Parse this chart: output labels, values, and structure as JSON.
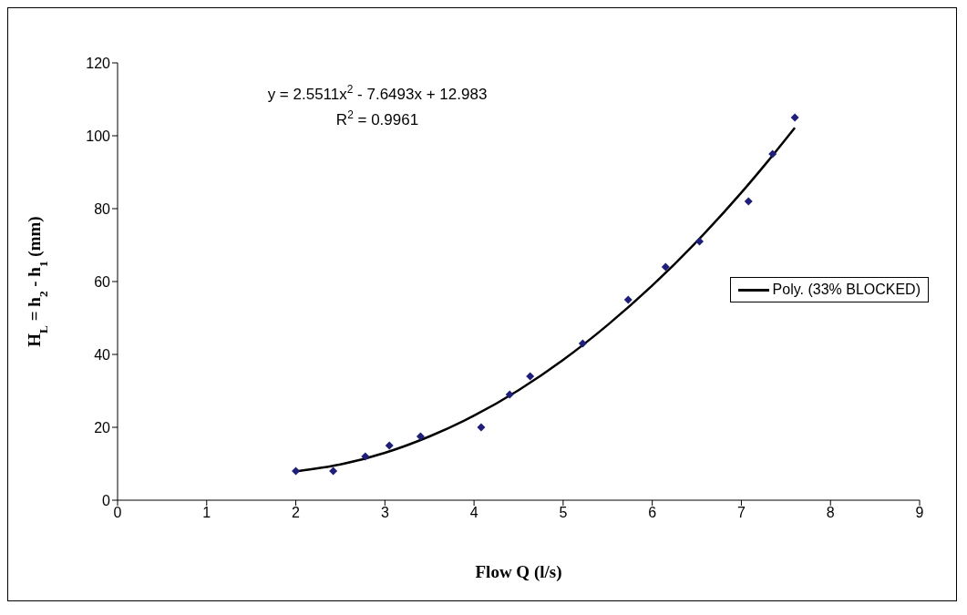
{
  "chart_data": {
    "type": "scatter",
    "xlabel": "Flow Q (l/s)",
    "ylabel": "H$_{L}$ = h$_{2}$ - h$_{1}$ (mm)",
    "x": [
      2.0,
      2.42,
      2.78,
      3.05,
      3.4,
      4.08,
      4.4,
      4.63,
      5.22,
      5.73,
      6.15,
      6.53,
      7.08,
      7.35,
      7.6
    ],
    "series": [
      {
        "color": "#1f1f7a",
        "marker": "diamond",
        "values": [
          8,
          8,
          12,
          15,
          17.5,
          20,
          29,
          34,
          43,
          55,
          64,
          71,
          82,
          95,
          105
        ]
      },
      {
        "type": "line",
        "name": "Poly. (33% BLOCKED)",
        "color": "#000000",
        "x": [
          2,
          2.5,
          3,
          3.5,
          4,
          4.5,
          5,
          5.5,
          6,
          6.5,
          7,
          7.3,
          7.6
        ],
        "values": [
          7.9,
          9.8,
          13,
          17.5,
          23.2,
          30.2,
          38.5,
          48.1,
          58.9,
          71,
          84.4,
          93.1,
          102.2
        ]
      }
    ],
    "xlim": [
      0,
      9
    ],
    "xticks": [
      0,
      1,
      2,
      3,
      4,
      5,
      6,
      7,
      8,
      9
    ],
    "ylim": [
      0,
      120
    ],
    "yticks": [
      0,
      20,
      40,
      60,
      80,
      100,
      120
    ],
    "grid": false,
    "legend": "right",
    "annotations": [
      "y = 2.5511x$^{2}$ - 7.6493x + 12.983",
      "R$^{2}$ = 0.9961"
    ]
  }
}
